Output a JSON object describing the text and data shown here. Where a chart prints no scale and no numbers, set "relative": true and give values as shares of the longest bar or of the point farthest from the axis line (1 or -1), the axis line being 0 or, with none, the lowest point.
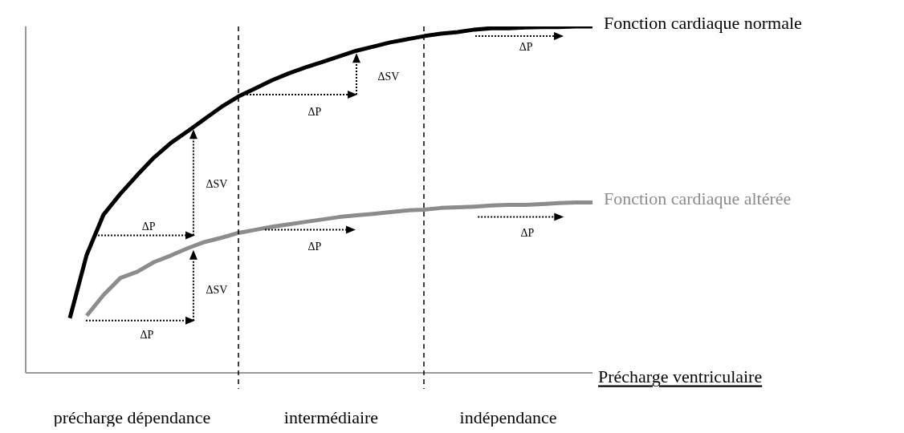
{
  "chart_data": {
    "type": "line",
    "xlabel": "Précharge ventriculaire",
    "relative": true,
    "grid": false,
    "marker": "none",
    "line_style": "solid",
    "categories": [
      null,
      null,
      null,
      null,
      null,
      null,
      null,
      null,
      null,
      null,
      null,
      null,
      null,
      null,
      null,
      null,
      null,
      null,
      null,
      null,
      null,
      null,
      null,
      null,
      null,
      null,
      null,
      null,
      null,
      null,
      null,
      null
    ],
    "series": [
      {
        "name": "Fonction cardiaque normale",
        "color": "#000000",
        "values": [
          0.158,
          0.341,
          0.457,
          0.517,
          0.571,
          0.622,
          0.664,
          0.698,
          0.733,
          0.768,
          0.798,
          0.821,
          0.845,
          0.865,
          0.882,
          0.898,
          0.914,
          0.93,
          0.942,
          0.954,
          0.963,
          0.972,
          0.979,
          0.984,
          0.991,
          0.995,
          0.995,
          0.997,
          0.998,
          0.998,
          1.0,
          1.0
        ]
      },
      {
        "name": "Fonction cardiaque altérée",
        "color": "#8c8c8c",
        "values": [
          null,
          0.165,
          0.225,
          0.274,
          0.292,
          0.32,
          0.339,
          0.36,
          0.378,
          0.39,
          0.404,
          0.413,
          0.422,
          0.429,
          0.436,
          0.443,
          0.45,
          0.455,
          0.459,
          0.464,
          0.469,
          0.471,
          0.476,
          0.478,
          0.48,
          0.483,
          0.485,
          0.485,
          0.487,
          0.49,
          0.492,
          0.492
        ]
      }
    ],
    "annotations": [
      "précharge dépendance",
      "intermédiaire",
      "indépendance",
      "ΔP",
      "ΔSV",
      "ΔP",
      "ΔSV",
      "ΔP",
      "ΔP",
      "ΔSV",
      "ΔP",
      "ΔP"
    ]
  }
}
